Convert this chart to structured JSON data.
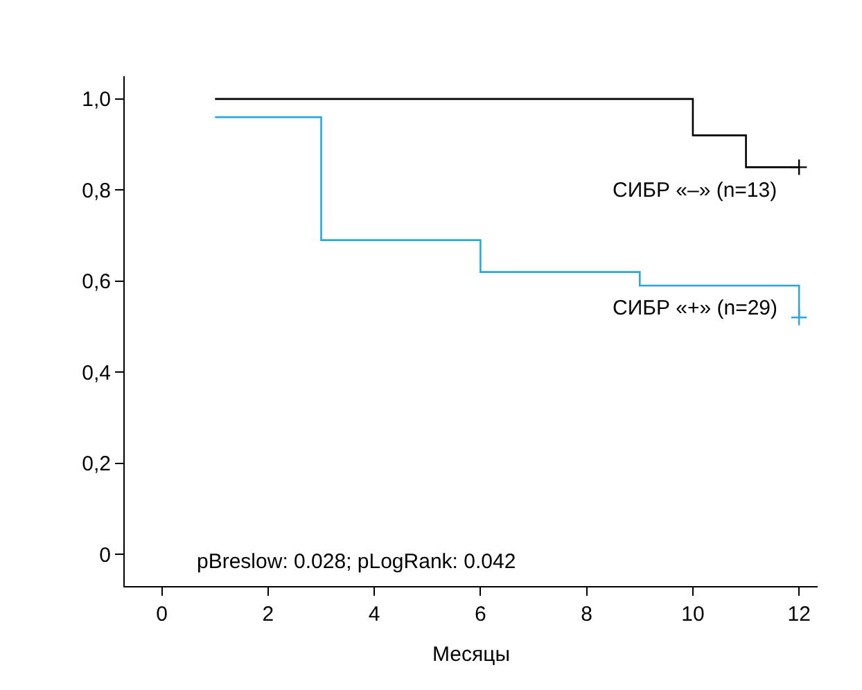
{
  "chart_data": {
    "type": "step",
    "xlabel": "Месяцы",
    "series": [
      {
        "name": "СИБР «–» (n=13)",
        "color": "#000000",
        "x": [
          1,
          10,
          11,
          12
        ],
        "values": [
          1.0,
          0.92,
          0.85,
          0.85
        ]
      },
      {
        "name": "СИБР «+» (n=29)",
        "color": "#29a8e0",
        "x": [
          1,
          3,
          6,
          9,
          12,
          12
        ],
        "values": [
          0.96,
          0.69,
          0.62,
          0.59,
          0.59,
          0.52
        ]
      },
      {
        "type": "scatter",
        "marker": "cross",
        "color": "#000000",
        "x": [
          12
        ],
        "values": [
          0.85
        ]
      },
      {
        "type": "scatter",
        "marker": "cross",
        "color": "#29a8e0",
        "x": [
          12
        ],
        "values": [
          0.52
        ]
      }
    ],
    "xlim": [
      -0.7,
      12.35
    ],
    "xticks": [
      0,
      2,
      4,
      6,
      8,
      10,
      12
    ],
    "ylim": [
      -0.07,
      1.05
    ],
    "yticks": [
      {
        "value": 0,
        "label": "0"
      },
      {
        "value": 0.2,
        "label": "0,2"
      },
      {
        "value": 0.4,
        "label": "0,4"
      },
      {
        "value": 0.6,
        "label": "0,6"
      },
      {
        "value": 0.8,
        "label": "0,8"
      },
      {
        "value": 1.0,
        "label": "1,0"
      }
    ],
    "annotations": [
      "pBreslow: 0.028; pLogRank: 0.042"
    ],
    "grid": false,
    "legend": false
  }
}
